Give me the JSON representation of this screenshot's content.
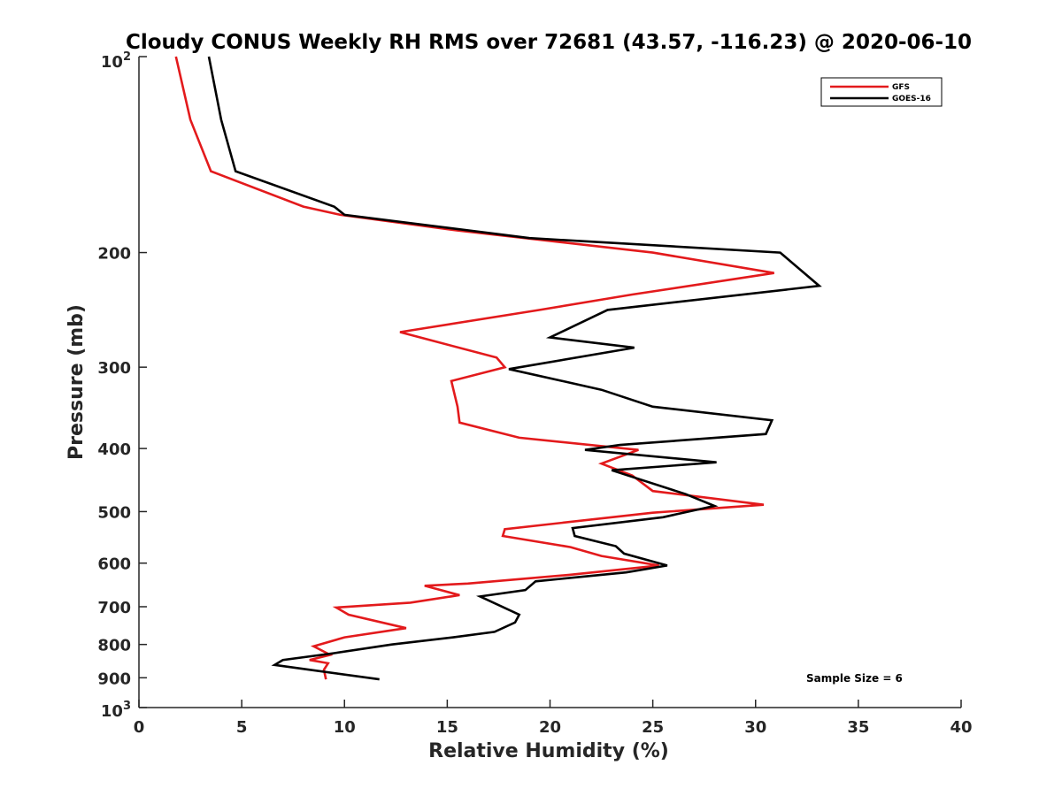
{
  "chart_data": {
    "type": "line",
    "title": "Cloudy CONUS Weekly RH RMS over 72681 (43.57, -116.23) @ 2020-06-10",
    "xlabel": "Relative Humidity (%)",
    "ylabel": "Pressure (mb)",
    "xlim": [
      0,
      40
    ],
    "ylim": [
      100,
      1000
    ],
    "y_scale": "log",
    "y_reversed": true,
    "grid": false,
    "legend_position": "top-right",
    "x_ticks": [
      0,
      5,
      10,
      15,
      20,
      25,
      30,
      35,
      40
    ],
    "y_ticks": [
      100,
      200,
      300,
      400,
      500,
      600,
      700,
      800,
      900,
      1000
    ],
    "y_tick_labels": {
      "top_base": "10",
      "top_exp": "2",
      "bottom_base": "10",
      "bottom_exp": "3",
      "middle": [
        "200",
        "300",
        "400",
        "500",
        "600",
        "700",
        "800",
        "900"
      ]
    },
    "annotation": "Sample Size = 6",
    "series": [
      {
        "name": "GFS",
        "color": "#e31a1c",
        "points": [
          [
            1.8,
            100
          ],
          [
            2.5,
            125
          ],
          [
            3.5,
            150
          ],
          [
            8.0,
            170
          ],
          [
            9.8,
            175
          ],
          [
            15.5,
            185
          ],
          [
            25.0,
            200
          ],
          [
            30.9,
            215
          ],
          [
            24.0,
            232
          ],
          [
            19.5,
            245
          ],
          [
            12.7,
            265
          ],
          [
            17.4,
            290
          ],
          [
            17.8,
            300
          ],
          [
            15.2,
            315
          ],
          [
            15.5,
            345
          ],
          [
            15.6,
            365
          ],
          [
            18.5,
            385
          ],
          [
            24.3,
            402
          ],
          [
            22.5,
            422
          ],
          [
            24.0,
            440
          ],
          [
            25.0,
            465
          ],
          [
            30.4,
            488
          ],
          [
            25.0,
            502
          ],
          [
            17.8,
            532
          ],
          [
            17.7,
            545
          ],
          [
            21.0,
            567
          ],
          [
            22.5,
            585
          ],
          [
            25.3,
            605
          ],
          [
            21.0,
            625
          ],
          [
            16.0,
            645
          ],
          [
            13.9,
            650
          ],
          [
            15.6,
            672
          ],
          [
            13.2,
            690
          ],
          [
            9.6,
            702
          ],
          [
            10.2,
            720
          ],
          [
            13.0,
            755
          ],
          [
            10.0,
            780
          ],
          [
            8.5,
            805
          ],
          [
            9.3,
            830
          ],
          [
            8.3,
            845
          ],
          [
            9.2,
            855
          ],
          [
            9.0,
            875
          ],
          [
            9.1,
            905
          ]
        ]
      },
      {
        "name": "GOES-16",
        "color": "#000000",
        "points": [
          [
            3.4,
            100
          ],
          [
            4.0,
            125
          ],
          [
            4.7,
            150
          ],
          [
            9.5,
            170
          ],
          [
            10.0,
            175
          ],
          [
            19.0,
            190
          ],
          [
            31.2,
            200
          ],
          [
            33.1,
            225
          ],
          [
            22.8,
            245
          ],
          [
            20.0,
            270
          ],
          [
            24.1,
            280
          ],
          [
            18.0,
            302
          ],
          [
            22.5,
            325
          ],
          [
            25.0,
            345
          ],
          [
            30.8,
            362
          ],
          [
            30.5,
            380
          ],
          [
            23.4,
            395
          ],
          [
            21.7,
            402
          ],
          [
            28.1,
            420
          ],
          [
            23.0,
            432
          ],
          [
            26.6,
            470
          ],
          [
            28.0,
            490
          ],
          [
            25.5,
            510
          ],
          [
            21.1,
            530
          ],
          [
            21.2,
            545
          ],
          [
            23.2,
            565
          ],
          [
            23.6,
            580
          ],
          [
            25.7,
            605
          ],
          [
            23.7,
            620
          ],
          [
            19.3,
            640
          ],
          [
            18.8,
            660
          ],
          [
            16.6,
            675
          ],
          [
            18.5,
            720
          ],
          [
            18.3,
            740
          ],
          [
            17.3,
            765
          ],
          [
            15.3,
            780
          ],
          [
            12.3,
            800
          ],
          [
            9.5,
            825
          ],
          [
            7.0,
            845
          ],
          [
            6.6,
            860
          ],
          [
            11.7,
            905
          ]
        ]
      }
    ]
  }
}
